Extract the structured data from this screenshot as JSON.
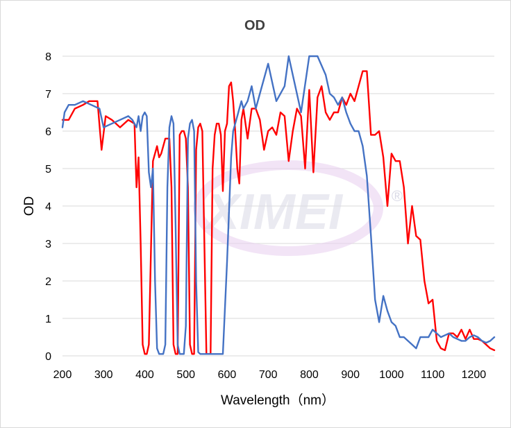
{
  "chart_data": {
    "type": "line",
    "title": "OD",
    "xlabel": "Wavelength（nm）",
    "ylabel": "OD",
    "xlim": [
      200,
      1250
    ],
    "ylim": [
      0,
      8
    ],
    "xticks": [
      "200",
      "300",
      "400",
      "500",
      "600",
      "700",
      "800",
      "900",
      "1000",
      "1100",
      "1200"
    ],
    "yticks": [
      "0",
      "1",
      "2",
      "3",
      "4",
      "5",
      "6",
      "7",
      "8"
    ],
    "grid": "horizontal",
    "legend": "none",
    "watermark": "XIMEI",
    "watermark_mark": "®",
    "series": [
      {
        "color": "#ff0000",
        "x": [
          200,
          215,
          230,
          250,
          265,
          285,
          295,
          305,
          320,
          340,
          360,
          375,
          380,
          385,
          390,
          395,
          400,
          405,
          410,
          420,
          430,
          435,
          440,
          450,
          460,
          465,
          470,
          475,
          480,
          485,
          490,
          495,
          500,
          505,
          510,
          515,
          520,
          525,
          530,
          535,
          540,
          550,
          560,
          565,
          570,
          575,
          580,
          585,
          590,
          595,
          600,
          605,
          610,
          615,
          620,
          625,
          630,
          635,
          640,
          645,
          650,
          660,
          670,
          680,
          690,
          700,
          710,
          720,
          730,
          740,
          750,
          760,
          770,
          780,
          790,
          800,
          810,
          820,
          830,
          840,
          850,
          860,
          870,
          880,
          890,
          900,
          910,
          920,
          930,
          940,
          950,
          960,
          970,
          980,
          990,
          1000,
          1010,
          1020,
          1030,
          1040,
          1050,
          1060,
          1070,
          1080,
          1090,
          1100,
          1110,
          1120,
          1130,
          1140,
          1150,
          1160,
          1170,
          1180,
          1190,
          1200,
          1210,
          1220,
          1230,
          1240,
          1250
        ],
        "y": [
          6.3,
          6.3,
          6.6,
          6.7,
          6.8,
          6.8,
          5.5,
          6.4,
          6.3,
          6.1,
          6.3,
          6.2,
          4.5,
          5.3,
          3.0,
          0.3,
          0.05,
          0.05,
          0.3,
          5.2,
          5.6,
          5.3,
          5.4,
          5.8,
          5.8,
          4.5,
          0.3,
          0.05,
          0.05,
          5.9,
          6.0,
          6.0,
          5.8,
          4.5,
          0.3,
          0.05,
          0.05,
          5.5,
          6.1,
          6.2,
          6.0,
          0.05,
          0.05,
          5.0,
          5.9,
          6.2,
          6.2,
          5.9,
          4.4,
          6.0,
          6.2,
          7.2,
          7.3,
          6.8,
          6.0,
          5.0,
          4.6,
          6.3,
          6.6,
          6.2,
          5.8,
          6.6,
          6.6,
          6.3,
          5.5,
          6.0,
          6.1,
          5.9,
          6.5,
          6.4,
          5.2,
          6.0,
          6.6,
          6.4,
          5.0,
          7.1,
          4.9,
          6.9,
          7.2,
          6.5,
          6.3,
          6.5,
          6.5,
          6.9,
          6.7,
          7.0,
          6.8,
          7.2,
          7.6,
          7.6,
          5.9,
          5.9,
          6.0,
          5.3,
          4.0,
          5.4,
          5.2,
          5.2,
          4.5,
          3.0,
          4.0,
          3.2,
          3.1,
          2.0,
          1.4,
          1.5,
          0.4,
          0.2,
          0.15,
          0.6,
          0.6,
          0.5,
          0.7,
          0.45,
          0.7,
          0.45,
          0.45,
          0.4,
          0.3,
          0.2,
          0.15
        ]
      },
      {
        "color": "#4472c4",
        "x": [
          200,
          205,
          215,
          230,
          250,
          270,
          290,
          300,
          320,
          340,
          360,
          370,
          380,
          385,
          390,
          395,
          400,
          405,
          410,
          415,
          420,
          425,
          430,
          435,
          440,
          445,
          450,
          455,
          460,
          465,
          470,
          475,
          480,
          485,
          490,
          495,
          500,
          505,
          510,
          515,
          520,
          525,
          530,
          535,
          540,
          545,
          550,
          555,
          560,
          565,
          570,
          575,
          580,
          590,
          600,
          610,
          615,
          620,
          625,
          630,
          635,
          640,
          650,
          660,
          670,
          680,
          700,
          720,
          740,
          750,
          760,
          780,
          800,
          820,
          840,
          850,
          860,
          870,
          880,
          890,
          900,
          910,
          920,
          930,
          940,
          950,
          960,
          970,
          980,
          990,
          1000,
          1010,
          1020,
          1030,
          1040,
          1050,
          1060,
          1070,
          1080,
          1090,
          1100,
          1110,
          1120,
          1130,
          1140,
          1150,
          1160,
          1170,
          1180,
          1190,
          1200,
          1210,
          1220,
          1230,
          1240,
          1250
        ],
        "y": [
          6.1,
          6.5,
          6.7,
          6.7,
          6.8,
          6.7,
          6.6,
          6.1,
          6.2,
          6.3,
          6.4,
          6.3,
          6.1,
          6.4,
          6.0,
          6.4,
          6.5,
          6.4,
          4.9,
          4.5,
          5.0,
          2.0,
          0.2,
          0.05,
          0.05,
          0.05,
          0.3,
          4.5,
          6.1,
          6.4,
          6.2,
          3.5,
          0.3,
          0.05,
          0.05,
          0.05,
          0.8,
          5.8,
          6.2,
          6.3,
          6.0,
          2.0,
          0.1,
          0.05,
          0.05,
          0.05,
          0.05,
          0.05,
          0.05,
          0.05,
          0.05,
          0.05,
          0.05,
          0.05,
          2.5,
          5.3,
          6.0,
          6.2,
          6.4,
          6.6,
          6.8,
          6.6,
          6.8,
          7.2,
          6.6,
          7.0,
          7.8,
          6.8,
          7.2,
          8.0,
          7.5,
          6.5,
          8.0,
          8.0,
          7.5,
          7.0,
          6.9,
          6.7,
          6.9,
          6.5,
          6.2,
          6.0,
          6.0,
          5.6,
          4.8,
          3.2,
          1.5,
          0.9,
          1.6,
          1.2,
          0.9,
          0.8,
          0.5,
          0.5,
          0.4,
          0.3,
          0.2,
          0.5,
          0.5,
          0.5,
          0.7,
          0.6,
          0.5,
          0.55,
          0.6,
          0.5,
          0.45,
          0.4,
          0.4,
          0.5,
          0.55,
          0.5,
          0.4,
          0.35,
          0.4,
          0.5
        ]
      }
    ]
  }
}
